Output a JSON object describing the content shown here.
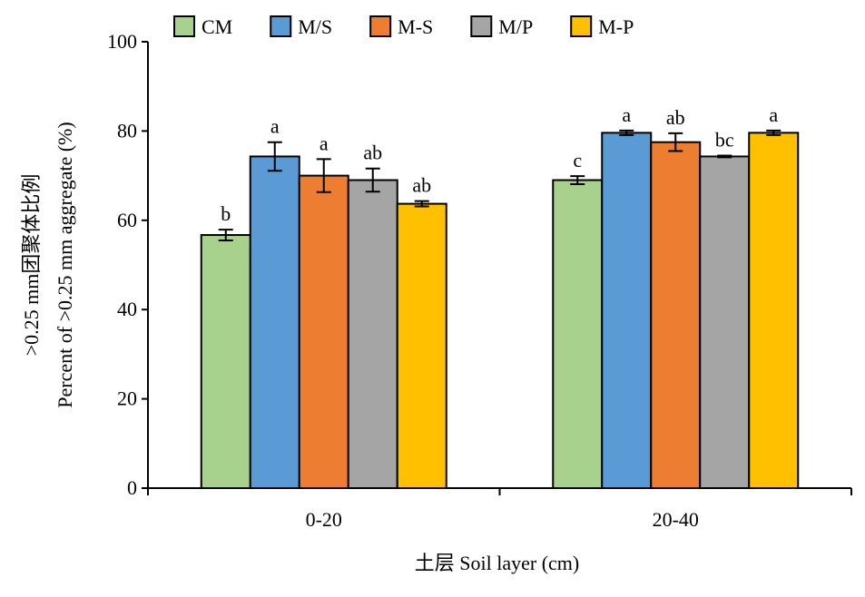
{
  "chart_data": {
    "type": "bar",
    "title": "",
    "xlabel": "土层 Soil layer (cm)",
    "ylabel_lines": [
      ">0.25 mm团聚体比例",
      "Percent of  >0.25 mm aggregate (%)"
    ],
    "categories": [
      "0-20",
      "20-40"
    ],
    "ylim": [
      0,
      100
    ],
    "yticks": [
      0,
      20,
      40,
      60,
      80,
      100
    ],
    "grid": false,
    "legend_position": "top",
    "series": [
      {
        "name": "CM",
        "color": "#a9d18e",
        "values": [
          56.7,
          69.0
        ],
        "errors": [
          1.2,
          0.9
        ],
        "labels": [
          "b",
          "c"
        ]
      },
      {
        "name": "M/S",
        "color": "#5b9bd5",
        "values": [
          74.3,
          79.6
        ],
        "errors": [
          3.2,
          0.5
        ],
        "labels": [
          "a",
          "a"
        ]
      },
      {
        "name": "M-S",
        "color": "#ed7d31",
        "values": [
          70.0,
          77.5
        ],
        "errors": [
          3.7,
          2.0
        ],
        "labels": [
          "a",
          "ab"
        ]
      },
      {
        "name": "M/P",
        "color": "#a5a5a5",
        "values": [
          69.0,
          74.3
        ],
        "errors": [
          2.6,
          0.2
        ],
        "labels": [
          "ab",
          "bc"
        ]
      },
      {
        "name": "M-P",
        "color": "#ffc000",
        "values": [
          63.7,
          79.6
        ],
        "errors": [
          0.6,
          0.5
        ],
        "labels": [
          "ab",
          "a"
        ]
      }
    ]
  }
}
